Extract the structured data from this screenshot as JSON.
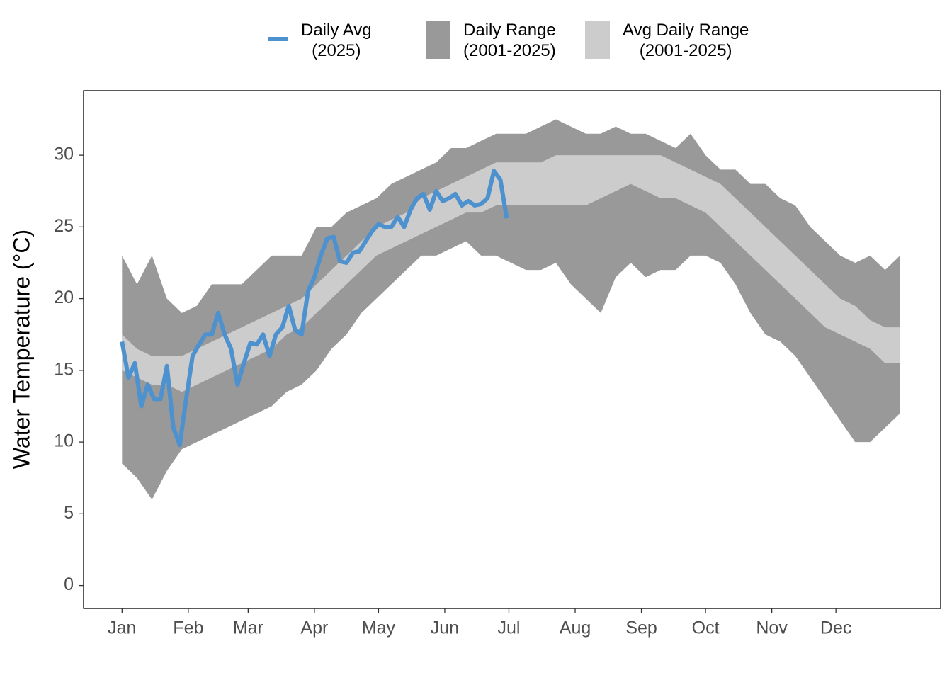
{
  "chart_data": {
    "type": "line",
    "ylabel": "Water Temperature (°C)",
    "xlim": [
      -17,
      384
    ],
    "ylim": [
      -1.6,
      34.5
    ],
    "yticks": [
      0,
      5,
      10,
      15,
      20,
      25,
      30
    ],
    "xticks": [
      {
        "value": 1,
        "label": "Jan"
      },
      {
        "value": 32,
        "label": "Feb"
      },
      {
        "value": 60,
        "label": "Mar"
      },
      {
        "value": 91,
        "label": "Apr"
      },
      {
        "value": 121,
        "label": "May"
      },
      {
        "value": 152,
        "label": "Jun"
      },
      {
        "value": 182,
        "label": "Jul"
      },
      {
        "value": 213,
        "label": "Aug"
      },
      {
        "value": 244,
        "label": "Sep"
      },
      {
        "value": 274,
        "label": "Oct"
      },
      {
        "value": 305,
        "label": "Nov"
      },
      {
        "value": 335,
        "label": "Dec"
      }
    ],
    "x": [
      1,
      8,
      15,
      22,
      29,
      36,
      43,
      50,
      57,
      64,
      71,
      78,
      85,
      92,
      99,
      106,
      113,
      120,
      127,
      134,
      141,
      148,
      155,
      162,
      169,
      176,
      183,
      190,
      197,
      204,
      211,
      218,
      225,
      232,
      239,
      246,
      253,
      260,
      267,
      274,
      281,
      288,
      295,
      302,
      309,
      316,
      323,
      330,
      337,
      344,
      351,
      358,
      365
    ],
    "series": [
      {
        "name": "Daily Avg\n(2025)",
        "type": "line",
        "color": "#4d91cf",
        "x": [
          1,
          4,
          7,
          10,
          13,
          16,
          19,
          22,
          25,
          28,
          31,
          34,
          37,
          40,
          43,
          46,
          49,
          52,
          55,
          58,
          61,
          64,
          67,
          70,
          73,
          76,
          79,
          82,
          85,
          88,
          91,
          94,
          97,
          100,
          103,
          106,
          109,
          112,
          115,
          118,
          121,
          124,
          127,
          130,
          133,
          136,
          139,
          142,
          145,
          148,
          151,
          154,
          157,
          160,
          163,
          166,
          169,
          172,
          175,
          178,
          181
        ],
        "values": [
          17,
          14.5,
          15.5,
          12.5,
          14,
          13,
          13,
          15.3,
          11,
          9.8,
          13,
          16,
          16.8,
          17.5,
          17.5,
          19,
          17.5,
          16.5,
          14,
          15.5,
          16.9,
          16.8,
          17.5,
          16,
          17.5,
          18,
          19.5,
          17.8,
          17.5,
          20.5,
          21.5,
          23,
          24.2,
          24.3,
          22.6,
          22.5,
          23.2,
          23.3,
          24,
          24.7,
          25.2,
          25,
          25,
          25.7,
          25,
          26.2,
          27,
          27.3,
          26.2,
          27.5,
          26.8,
          27,
          27.3,
          26.5,
          26.8,
          26.5,
          26.6,
          27,
          28.9,
          28.3,
          25.6
        ]
      },
      {
        "name": "Daily Range\n(2001-2025)",
        "type": "band",
        "color": "#999999",
        "low": [
          8.5,
          7.5,
          6,
          8,
          9.5,
          10,
          10.5,
          11,
          11.5,
          12,
          12.5,
          13.5,
          14,
          15,
          16.5,
          17.5,
          19,
          20,
          21,
          22,
          23,
          23,
          23.5,
          24,
          23,
          23,
          22.5,
          22,
          22,
          22.5,
          21,
          20,
          19,
          21.5,
          22.5,
          21.5,
          22,
          22,
          23,
          23,
          22.5,
          21,
          19,
          17.5,
          17,
          16,
          14.5,
          13,
          11.5,
          10,
          10,
          11,
          12
        ],
        "high": [
          23,
          21,
          23,
          20,
          19,
          19.5,
          21,
          21,
          21,
          22,
          23,
          23,
          23,
          25,
          25,
          26,
          26.5,
          27,
          28,
          28.5,
          29,
          29.5,
          30.5,
          30.5,
          31,
          31.5,
          31.5,
          31.5,
          32,
          32.5,
          32,
          31.5,
          31.5,
          32,
          31.5,
          31.5,
          31,
          30.5,
          31.5,
          30,
          29,
          29,
          28,
          28,
          27,
          26.5,
          25,
          24,
          23,
          22.5,
          23,
          22,
          23
        ]
      },
      {
        "name": "Avg Daily Range\n(2001-2025)",
        "type": "band",
        "color": "#cccccc",
        "low": [
          15,
          14.5,
          14,
          14,
          13.5,
          14,
          14.5,
          15,
          15.5,
          16,
          16.5,
          17.5,
          18,
          19,
          20,
          21,
          22,
          23,
          23.5,
          24,
          24.5,
          25,
          25.5,
          26,
          26,
          26.5,
          26.5,
          26.5,
          26.5,
          26.5,
          26.5,
          26.5,
          27,
          27.5,
          28,
          27.5,
          27,
          27,
          26.5,
          26,
          25,
          24,
          23,
          22,
          21,
          20,
          19,
          18,
          17.5,
          17,
          16.5,
          15.5,
          15.5
        ],
        "high": [
          17.5,
          16.5,
          16,
          16,
          16,
          16.5,
          17,
          17.5,
          18,
          18.5,
          19,
          19.5,
          20,
          21,
          22,
          23,
          24,
          25,
          25.5,
          26,
          27,
          27.5,
          28,
          28.5,
          29,
          29.5,
          29.5,
          29.5,
          29.5,
          30,
          30,
          30,
          30,
          30,
          30,
          30,
          30,
          29.5,
          29,
          28.5,
          28,
          27,
          26,
          25,
          24,
          23,
          22,
          21,
          20,
          19.5,
          18.5,
          18,
          18
        ]
      }
    ]
  }
}
